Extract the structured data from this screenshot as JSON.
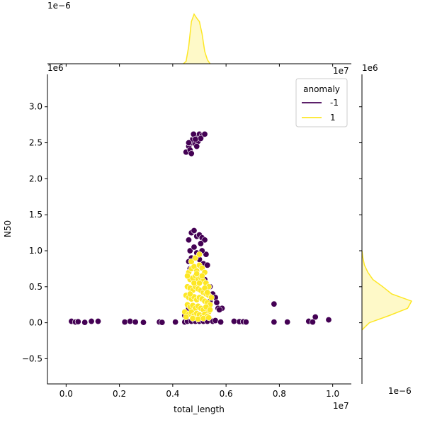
{
  "chart_data": {
    "type": "scatter",
    "title": "",
    "xlabel": "total_length",
    "ylabel": "N50",
    "x_offset_text": "1e7",
    "y_offset_text": "1e6",
    "xlim": [
      -7000000,
      107000000
    ],
    "ylim": [
      -850000,
      3450000
    ],
    "x_ticks": [
      0,
      20000000,
      40000000,
      60000000,
      80000000,
      100000000
    ],
    "x_tick_labels": [
      "0.0",
      "0.2",
      "0.4",
      "0.6",
      "0.8",
      "1.0"
    ],
    "y_ticks": [
      -500000,
      0,
      500000,
      1000000,
      1500000,
      2000000,
      2500000,
      3000000
    ],
    "y_tick_labels": [
      "−0.5",
      "0.0",
      "0.5",
      "1.0",
      "1.5",
      "2.0",
      "2.5",
      "3.0"
    ],
    "legend": {
      "title": "anomaly",
      "position": "top-right",
      "entries": [
        {
          "label": "-1",
          "color": "#440154"
        },
        {
          "label": "1",
          "color": "#fde725"
        }
      ]
    },
    "series": [
      {
        "name": "-1",
        "color": "#440154",
        "points": [
          [
            2000000,
            20000
          ],
          [
            3500000,
            10000
          ],
          [
            4500000,
            15000
          ],
          [
            7000000,
            5000
          ],
          [
            9500000,
            20000
          ],
          [
            12000000,
            20000
          ],
          [
            22000000,
            10000
          ],
          [
            24000000,
            20000
          ],
          [
            26000000,
            10000
          ],
          [
            29000000,
            5000
          ],
          [
            35000000,
            10000
          ],
          [
            36000000,
            5000
          ],
          [
            41000000,
            10000
          ],
          [
            44500000,
            10000
          ],
          [
            63000000,
            20000
          ],
          [
            65000000,
            15000
          ],
          [
            66500000,
            15000
          ],
          [
            67500000,
            10000
          ],
          [
            78000000,
            260000
          ],
          [
            78000000,
            10000
          ],
          [
            83000000,
            10000
          ],
          [
            91000000,
            20000
          ],
          [
            92500000,
            10000
          ],
          [
            93500000,
            80000
          ],
          [
            98500000,
            40000
          ],
          [
            45000000,
            2370000
          ],
          [
            46000000,
            2450000
          ],
          [
            46500000,
            2400000
          ],
          [
            47000000,
            2500000
          ],
          [
            47500000,
            2550000
          ],
          [
            48000000,
            2600000
          ],
          [
            48500000,
            2480000
          ],
          [
            49000000,
            2580000
          ],
          [
            49500000,
            2520000
          ],
          [
            50000000,
            2620000
          ],
          [
            51000000,
            2600000
          ],
          [
            52000000,
            2620000
          ],
          [
            47000000,
            2350000
          ],
          [
            46000000,
            2500000
          ],
          [
            49000000,
            2450000
          ],
          [
            50500000,
            2560000
          ],
          [
            47800000,
            2620000
          ],
          [
            48500000,
            2550000
          ],
          [
            46000000,
            1150000
          ],
          [
            47000000,
            1250000
          ],
          [
            48000000,
            1280000
          ],
          [
            49000000,
            1200000
          ],
          [
            50000000,
            1220000
          ],
          [
            51000000,
            1180000
          ],
          [
            52000000,
            1150000
          ],
          [
            46500000,
            1000000
          ],
          [
            48000000,
            1050000
          ],
          [
            50500000,
            1100000
          ],
          [
            47000000,
            900000
          ],
          [
            52500000,
            950000
          ],
          [
            46000000,
            850000
          ],
          [
            50000000,
            880000
          ],
          [
            51500000,
            820000
          ],
          [
            53000000,
            800000
          ],
          [
            52000000,
            600000
          ],
          [
            54000000,
            500000
          ],
          [
            55000000,
            400000
          ],
          [
            56000000,
            350000
          ],
          [
            56500000,
            280000
          ],
          [
            57000000,
            200000
          ],
          [
            58500000,
            200000
          ],
          [
            57500000,
            180000
          ],
          [
            44500000,
            100000
          ],
          [
            54000000,
            300000
          ],
          [
            46000000,
            200000
          ],
          [
            52000000,
            180000
          ],
          [
            45500000,
            20000
          ],
          [
            47000000,
            20000
          ],
          [
            48500000,
            20000
          ],
          [
            50000000,
            20000
          ],
          [
            51500000,
            20000
          ],
          [
            53000000,
            20000
          ],
          [
            55000000,
            20000
          ],
          [
            56000000,
            30000
          ],
          [
            58000000,
            10000
          ],
          [
            49000000,
            970000
          ],
          [
            51000000,
            1000000
          ],
          [
            46500000,
            750000
          ]
        ]
      },
      {
        "name": "1",
        "color": "#fde725",
        "points": [
          [
            46000000,
            700000
          ],
          [
            47000000,
            750000
          ],
          [
            48000000,
            780000
          ],
          [
            49000000,
            720000
          ],
          [
            50000000,
            800000
          ],
          [
            51000000,
            760000
          ],
          [
            52000000,
            700000
          ],
          [
            46500000,
            600000
          ],
          [
            47500000,
            620000
          ],
          [
            48500000,
            650000
          ],
          [
            49500000,
            600000
          ],
          [
            50500000,
            630000
          ],
          [
            51500000,
            580000
          ],
          [
            52500000,
            550000
          ],
          [
            53500000,
            500000
          ],
          [
            45500000,
            500000
          ],
          [
            46500000,
            480000
          ],
          [
            47500000,
            450000
          ],
          [
            48500000,
            500000
          ],
          [
            49500000,
            470000
          ],
          [
            50500000,
            450000
          ],
          [
            51500000,
            420000
          ],
          [
            52500000,
            400000
          ],
          [
            53500000,
            380000
          ],
          [
            54500000,
            350000
          ],
          [
            45000000,
            380000
          ],
          [
            46000000,
            350000
          ],
          [
            47000000,
            330000
          ],
          [
            48000000,
            360000
          ],
          [
            49000000,
            320000
          ],
          [
            50000000,
            350000
          ],
          [
            51000000,
            330000
          ],
          [
            52000000,
            300000
          ],
          [
            53000000,
            280000
          ],
          [
            54000000,
            250000
          ],
          [
            45500000,
            250000
          ],
          [
            46500000,
            220000
          ],
          [
            47500000,
            240000
          ],
          [
            48500000,
            200000
          ],
          [
            49500000,
            230000
          ],
          [
            50500000,
            200000
          ],
          [
            51500000,
            180000
          ],
          [
            52500000,
            220000
          ],
          [
            53500000,
            150000
          ],
          [
            44500000,
            150000
          ],
          [
            46000000,
            120000
          ],
          [
            47000000,
            150000
          ],
          [
            48000000,
            100000
          ],
          [
            49000000,
            130000
          ],
          [
            50000000,
            110000
          ],
          [
            51000000,
            80000
          ],
          [
            52000000,
            120000
          ],
          [
            53000000,
            90000
          ],
          [
            45000000,
            80000
          ],
          [
            47500000,
            60000
          ],
          [
            49500000,
            50000
          ],
          [
            51500000,
            60000
          ],
          [
            53500000,
            70000
          ],
          [
            46500000,
            400000
          ],
          [
            48000000,
            550000
          ],
          [
            50000000,
            550000
          ],
          [
            52000000,
            480000
          ],
          [
            47000000,
            850000
          ],
          [
            49000000,
            680000
          ],
          [
            51000000,
            650000
          ],
          [
            48500000,
            900000
          ],
          [
            50000000,
            950000
          ],
          [
            45500000,
            650000
          ],
          [
            53000000,
            420000
          ],
          [
            54000000,
            180000
          ]
        ]
      }
    ],
    "marginal_x": {
      "offset_text": "1e−6",
      "curve": [
        [
          44000000,
          0
        ],
        [
          45000000,
          0.05
        ],
        [
          46000000,
          0.35
        ],
        [
          47000000,
          0.85
        ],
        [
          48000000,
          1.0
        ],
        [
          49000000,
          0.92
        ],
        [
          50000000,
          0.85
        ],
        [
          51000000,
          0.6
        ],
        [
          52000000,
          0.25
        ],
        [
          53000000,
          0.08
        ],
        [
          54000000,
          0
        ]
      ]
    },
    "marginal_y": {
      "offset_text": "1e−6",
      "curve": [
        [
          -100000,
          0
        ],
        [
          0,
          0.15
        ],
        [
          100000,
          0.55
        ],
        [
          200000,
          0.92
        ],
        [
          300000,
          1.0
        ],
        [
          400000,
          0.6
        ],
        [
          500000,
          0.42
        ],
        [
          600000,
          0.22
        ],
        [
          700000,
          0.12
        ],
        [
          800000,
          0.05
        ],
        [
          900000,
          0.02
        ],
        [
          1000000,
          0
        ]
      ]
    }
  }
}
